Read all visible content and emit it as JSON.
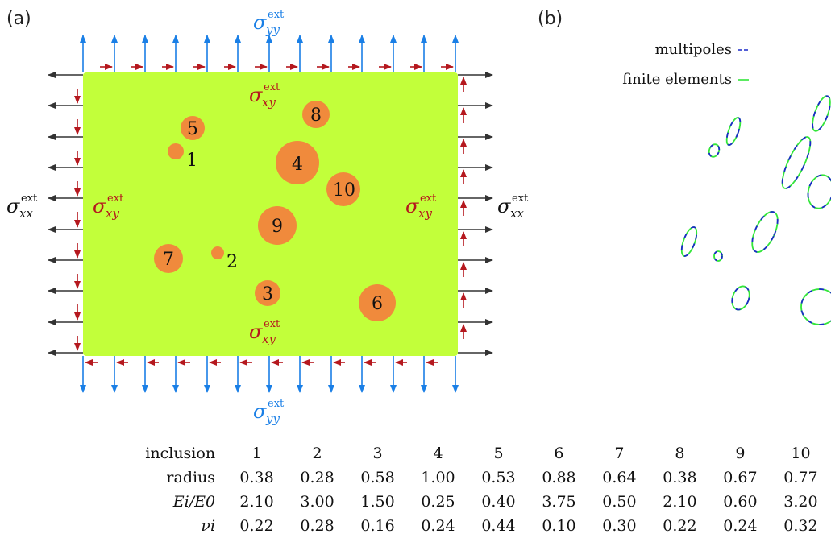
{
  "panels": {
    "a_label": "(a)",
    "b_label": "(b)"
  },
  "stress_labels": {
    "sigma": "σ",
    "ext": "ext",
    "yy": "yy",
    "xx": "xx",
    "xy": "xy"
  },
  "colors": {
    "matrix": "#c2ff3a",
    "inclusion": "#f08a3c",
    "normal_xx": "#333333",
    "normal_yy": "#1a7fe6",
    "shear": "#b5181e",
    "multipoles": "#1a2ac8",
    "finite_elements": "#33e63a"
  },
  "legend": {
    "multipoles": "multipoles",
    "finite_elements": "finite elements"
  },
  "inclusions": [
    {
      "id": "1",
      "label": "1"
    },
    {
      "id": "2",
      "label": "2"
    },
    {
      "id": "3",
      "label": "3"
    },
    {
      "id": "4",
      "label": "4"
    },
    {
      "id": "5",
      "label": "5"
    },
    {
      "id": "6",
      "label": "6"
    },
    {
      "id": "7",
      "label": "7"
    },
    {
      "id": "8",
      "label": "8"
    },
    {
      "id": "9",
      "label": "9"
    },
    {
      "id": "10",
      "label": "10"
    }
  ],
  "table": {
    "rows": [
      {
        "head": "inclusion",
        "values": [
          "1",
          "2",
          "3",
          "4",
          "5",
          "6",
          "7",
          "8",
          "9",
          "10"
        ]
      },
      {
        "head": "radius",
        "values": [
          "0.38",
          "0.28",
          "0.58",
          "1.00",
          "0.53",
          "0.88",
          "0.64",
          "0.38",
          "0.67",
          "0.77"
        ]
      },
      {
        "head": "Ei/E0",
        "values": [
          "2.10",
          "3.00",
          "1.50",
          "0.25",
          "0.40",
          "3.75",
          "0.50",
          "2.10",
          "0.60",
          "3.20"
        ]
      },
      {
        "head": "νi",
        "values": [
          "0.22",
          "0.28",
          "0.16",
          "0.24",
          "0.44",
          "0.10",
          "0.30",
          "0.22",
          "0.24",
          "0.32"
        ]
      }
    ]
  }
}
